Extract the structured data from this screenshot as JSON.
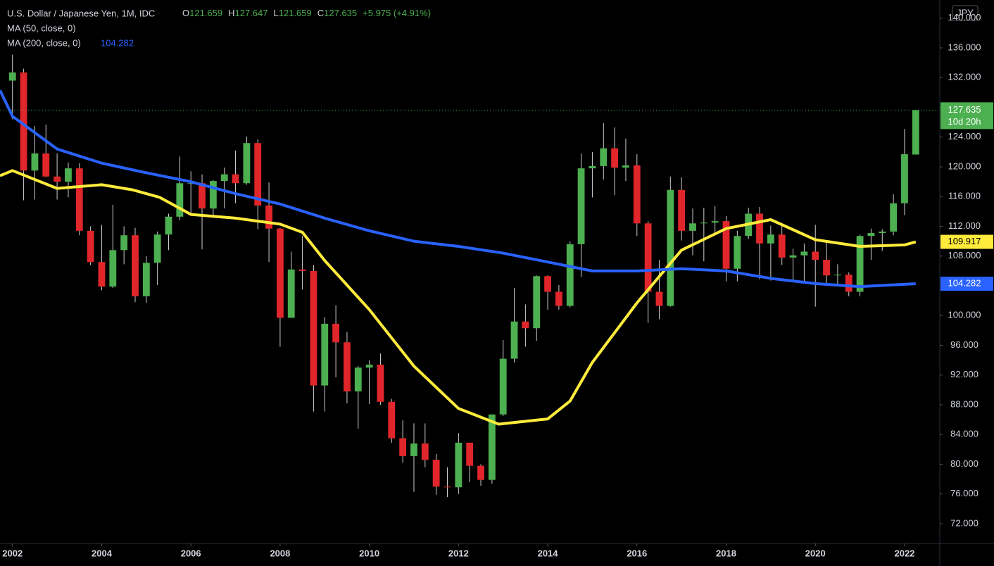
{
  "header": {
    "symbol": "U.S. Dollar / Japanese Yen, 1M, IDC",
    "ohlc_labels": [
      "O",
      "H",
      "L",
      "C"
    ],
    "change": "+5.975 (+4.91%)",
    "countdown": "10d 20h"
  },
  "chart_data": {
    "type": "candlestick",
    "currency": "JPY",
    "up_color": "#4caf50",
    "down_color": "#e0262a",
    "xlim": [
      2001.72,
      2022.79
    ],
    "ylim": [
      69.35,
      142.44
    ],
    "xticks": [
      2002,
      2004,
      2006,
      2008,
      2010,
      2012,
      2014,
      2016,
      2018,
      2020,
      2022
    ],
    "yticks": [
      {
        "value": 72,
        "label": "72.000"
      },
      {
        "value": 76,
        "label": "76.000"
      },
      {
        "value": 80,
        "label": "80.000"
      },
      {
        "value": 84,
        "label": "84.000"
      },
      {
        "value": 88,
        "label": "88.000"
      },
      {
        "value": 92,
        "label": "92.000"
      },
      {
        "value": 96,
        "label": "96.000"
      },
      {
        "value": 100,
        "label": "100.000"
      },
      {
        "value": 104,
        "label": "104.000"
      },
      {
        "value": 108,
        "label": "108.000"
      },
      {
        "value": 112,
        "label": "112.000"
      },
      {
        "value": 116,
        "label": "116.000"
      },
      {
        "value": 120,
        "label": "120.000"
      },
      {
        "value": 124,
        "label": "124.000"
      },
      {
        "value": 128,
        "label": "128.000"
      },
      {
        "value": 132,
        "label": "132.000"
      },
      {
        "value": 136,
        "label": "136.000"
      },
      {
        "value": 140,
        "label": "140.000"
      }
    ],
    "candles": {
      "x": [
        2002,
        2002.25,
        2002.5,
        2002.75,
        2003,
        2003.25,
        2003.5,
        2003.75,
        2004,
        2004.25,
        2004.5,
        2004.75,
        2005,
        2005.25,
        2005.5,
        2005.75,
        2006,
        2006.25,
        2006.5,
        2006.75,
        2007,
        2007.25,
        2007.5,
        2007.75,
        2008,
        2008.25,
        2008.5,
        2008.75,
        2009,
        2009.25,
        2009.5,
        2009.75,
        2010,
        2010.25,
        2010.5,
        2010.75,
        2011,
        2011.25,
        2011.5,
        2011.75,
        2012,
        2012.25,
        2012.5,
        2012.75,
        2013,
        2013.25,
        2013.5,
        2013.75,
        2014,
        2014.25,
        2014.5,
        2014.75,
        2015,
        2015.25,
        2015.5,
        2015.75,
        2016,
        2016.25,
        2016.5,
        2016.75,
        2017,
        2017.25,
        2017.5,
        2017.75,
        2018,
        2018.25,
        2018.5,
        2018.75,
        2019,
        2019.25,
        2019.5,
        2019.75,
        2020,
        2020.25,
        2020.5,
        2020.75,
        2021,
        2021.25,
        2021.5,
        2021.75,
        2022,
        2022.25
      ],
      "open": [
        131.6,
        132.7,
        119.5,
        121.8,
        118.7,
        118.0,
        119.8,
        111.4,
        107.2,
        103.9,
        108.8,
        110.8,
        102.6,
        107.1,
        110.9,
        113.3,
        117.8,
        117.8,
        114.4,
        118.1,
        119.0,
        117.8,
        123.2,
        114.8,
        111.7,
        99.7,
        106.2,
        106.0,
        90.6,
        98.9,
        96.4,
        89.8,
        93.0,
        93.4,
        88.4,
        83.5,
        81.1,
        82.8,
        80.6,
        77.0,
        76.9,
        82.9,
        79.8,
        77.9,
        86.7,
        94.2,
        99.2,
        98.3,
        105.3,
        103.2,
        101.3,
        109.6,
        119.8,
        120.1,
        122.5,
        119.9,
        120.2,
        112.4,
        103.2,
        101.3,
        116.9,
        111.4,
        112.4,
        112.5,
        112.7,
        106.3,
        110.7,
        113.7,
        109.7,
        110.9,
        107.8,
        108.1,
        108.6,
        107.5,
        105.4,
        105.5,
        103.2,
        110.7,
        111.1,
        111.3,
        115.1,
        121.659
      ],
      "high": [
        135.1,
        133.2,
        125.5,
        125.7,
        121.8,
        120.6,
        120.5,
        112.0,
        112.2,
        114.9,
        112.0,
        111.8,
        108.0,
        111.3,
        113.7,
        121.4,
        119.4,
        119.0,
        118.2,
        119.9,
        122.2,
        124.1,
        123.7,
        117.9,
        111.8,
        108.6,
        110.7,
        106.8,
        99.8,
        101.4,
        97.8,
        93.2,
        94.0,
        94.9,
        88.8,
        85.9,
        85.5,
        85.5,
        81.4,
        79.6,
        84.2,
        82.9,
        80.0,
        86.7,
        96.7,
        103.7,
        101.5,
        105.4,
        105.4,
        104.1,
        110.0,
        121.8,
        122.0,
        125.9,
        125.3,
        123.8,
        121.7,
        112.7,
        107.5,
        118.7,
        118.6,
        114.4,
        114.5,
        114.7,
        113.4,
        111.4,
        114.5,
        114.6,
        112.1,
        112.4,
        109.0,
        109.7,
        112.2,
        109.9,
        106.9,
        105.8,
        110.9,
        111.7,
        111.6,
        116.3,
        125.1,
        127.647
      ],
      "low": [
        126.4,
        115.5,
        115.6,
        118.6,
        115.6,
        115.9,
        110.8,
        106.8,
        103.4,
        103.7,
        106.9,
        101.8,
        101.7,
        104.1,
        108.8,
        112.8,
        113.4,
        108.9,
        113.4,
        114.4,
        115.1,
        117.6,
        111.6,
        107.2,
        95.8,
        99.9,
        103.5,
        87.1,
        87.1,
        91.7,
        88.2,
        84.8,
        88.1,
        88.0,
        82.9,
        80.2,
        76.3,
        79.6,
        75.9,
        75.6,
        76.0,
        77.6,
        77.1,
        77.4,
        86.5,
        93.7,
        95.8,
        96.6,
        100.8,
        100.8,
        101.1,
        105.2,
        115.9,
        118.3,
        116.2,
        118.1,
        110.7,
        99.0,
        99.5,
        101.2,
        110.1,
        108.1,
        107.3,
        110.8,
        104.6,
        104.6,
        110.3,
        104.9,
        104.7,
        106.8,
        104.5,
        104.5,
        101.2,
        104.2,
        104.0,
        102.6,
        102.6,
        107.5,
        108.7,
        110.8,
        113.5,
        121.659
      ],
      "close": [
        132.7,
        119.5,
        121.8,
        118.7,
        118.0,
        119.8,
        111.4,
        107.2,
        103.9,
        108.8,
        110.8,
        102.6,
        107.1,
        110.9,
        113.3,
        117.8,
        117.8,
        114.4,
        118.1,
        119.0,
        117.8,
        123.2,
        114.8,
        111.7,
        99.7,
        106.2,
        106.0,
        90.6,
        98.9,
        96.4,
        89.8,
        93.0,
        93.4,
        88.4,
        83.5,
        81.1,
        82.8,
        80.6,
        77.0,
        76.9,
        82.9,
        79.8,
        77.9,
        86.7,
        94.2,
        99.2,
        98.3,
        105.3,
        103.2,
        101.3,
        109.6,
        119.8,
        120.1,
        122.5,
        119.9,
        120.2,
        112.4,
        103.2,
        101.3,
        116.9,
        111.4,
        112.4,
        112.5,
        112.7,
        106.3,
        110.7,
        113.7,
        109.7,
        110.9,
        107.8,
        108.1,
        108.6,
        107.5,
        105.4,
        105.5,
        103.2,
        110.7,
        111.1,
        111.3,
        115.1,
        121.7,
        127.635
      ]
    },
    "series": [
      {
        "name": "MA (50, close, 0)",
        "color": "#ffeb3b",
        "x": [
          2001.72,
          2002,
          2002.5,
          2003,
          2004,
          2004.7,
          2005.3,
          2006,
          2007,
          2008,
          2008.5,
          2009,
          2010,
          2011,
          2012,
          2012.9,
          2014,
          2014.5,
          2015,
          2016,
          2017,
          2018,
          2019,
          2020,
          2021,
          2022,
          2022.25
        ],
        "values": [
          118.8,
          119.5,
          118.3,
          117.1,
          117.6,
          116.9,
          115.9,
          113.6,
          113.1,
          112.3,
          111.2,
          107.4,
          100.8,
          93.2,
          87.5,
          85.4,
          86.1,
          88.5,
          93.7,
          101.7,
          108.8,
          111.7,
          112.9,
          110.2,
          109.3,
          109.5,
          109.917
        ]
      },
      {
        "name": "MA (200, close, 0)",
        "color": "#2962ff",
        "x": [
          2001.72,
          2002,
          2003,
          2004,
          2005,
          2006,
          2007,
          2008,
          2009,
          2010,
          2011,
          2012,
          2013,
          2014,
          2015,
          2016,
          2017,
          2018,
          2019,
          2020,
          2021,
          2022.25
        ],
        "values": [
          130.3,
          126.8,
          122.4,
          120.5,
          119.2,
          118.0,
          116.4,
          115.0,
          113.1,
          111.4,
          110.0,
          109.3,
          108.4,
          107.2,
          106.0,
          106.0,
          106.3,
          106.0,
          105.0,
          104.3,
          103.9,
          104.282
        ]
      }
    ]
  }
}
